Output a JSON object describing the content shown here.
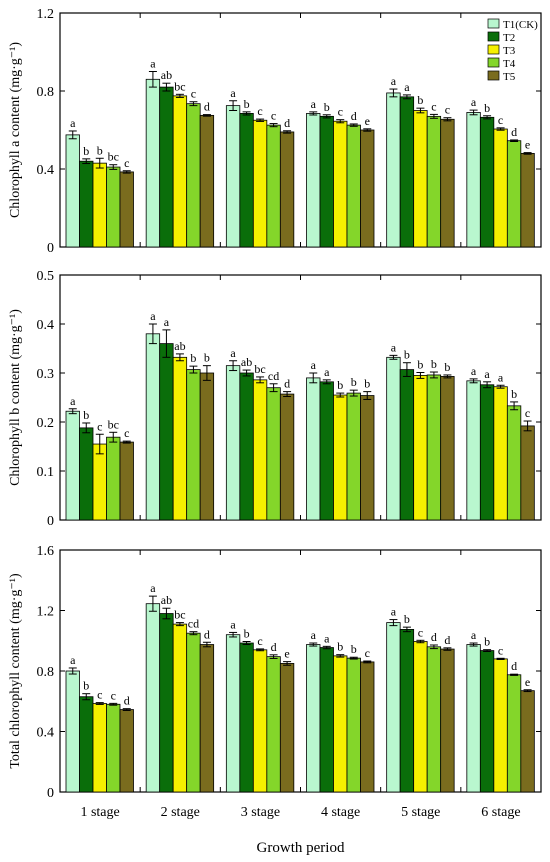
{
  "chart_data": [
    {
      "type": "bar",
      "ylabel": "Chlorophyll a content  (mg·g⁻¹)",
      "ylim": [
        0,
        1.2
      ],
      "yticks": [
        0,
        0.4,
        0.8,
        1.2
      ],
      "ytick_labels": [
        "0",
        "0.4",
        "0.8",
        "1.2"
      ],
      "grid": false,
      "legend": "top-right",
      "series": [
        {
          "name": "T1(CK)",
          "values": [
            0.575,
            0.86,
            0.725,
            0.685,
            0.79,
            0.69
          ],
          "errors": [
            0.02,
            0.04,
            0.025,
            0.008,
            0.02,
            0.012
          ],
          "letters": [
            "a",
            "a",
            "a",
            "a",
            "a",
            "a"
          ]
        },
        {
          "name": "T2",
          "values": [
            0.44,
            0.82,
            0.685,
            0.67,
            0.77,
            0.665
          ],
          "errors": [
            0.012,
            0.02,
            0.008,
            0.008,
            0.01,
            0.008
          ],
          "letters": [
            "b",
            "ab",
            "b",
            "b",
            "a",
            "b"
          ]
        },
        {
          "name": "T3",
          "values": [
            0.43,
            0.775,
            0.65,
            0.645,
            0.7,
            0.605
          ],
          "errors": [
            0.025,
            0.008,
            0.006,
            0.008,
            0.012,
            0.006
          ],
          "letters": [
            "b",
            "bc",
            "c",
            "c",
            "b",
            "c"
          ]
        },
        {
          "name": "T4",
          "values": [
            0.41,
            0.735,
            0.625,
            0.625,
            0.67,
            0.545
          ],
          "errors": [
            0.012,
            0.01,
            0.008,
            0.006,
            0.01,
            0.004
          ],
          "letters": [
            "bc",
            "c",
            "c",
            "d",
            "c",
            "d"
          ]
        },
        {
          "name": "T5",
          "values": [
            0.385,
            0.675,
            0.59,
            0.6,
            0.655,
            0.48
          ],
          "errors": [
            0.006,
            0.004,
            0.006,
            0.006,
            0.008,
            0.004
          ],
          "letters": [
            "c",
            "d",
            "d",
            "e",
            "c",
            "e"
          ]
        }
      ]
    },
    {
      "type": "bar",
      "ylabel": "Chlorophyll b content  (mg·g⁻¹)",
      "ylim": [
        0,
        0.5
      ],
      "yticks": [
        0,
        0.1,
        0.2,
        0.3,
        0.4,
        0.5
      ],
      "ytick_labels": [
        "0",
        "0.1",
        "0.2",
        "0.3",
        "0.4",
        "0.5"
      ],
      "grid": false,
      "series": [
        {
          "name": "T1(CK)",
          "values": [
            0.222,
            0.38,
            0.315,
            0.29,
            0.332,
            0.284
          ],
          "errors": [
            0.005,
            0.02,
            0.01,
            0.01,
            0.004,
            0.004
          ],
          "letters": [
            "a",
            "a",
            "a",
            "a",
            "a",
            "a"
          ]
        },
        {
          "name": "T2",
          "values": [
            0.188,
            0.36,
            0.3,
            0.282,
            0.307,
            0.276
          ],
          "errors": [
            0.01,
            0.028,
            0.006,
            0.004,
            0.014,
            0.006
          ],
          "letters": [
            "b",
            "a",
            "ab",
            "a",
            "b",
            "a"
          ]
        },
        {
          "name": "T3",
          "values": [
            0.155,
            0.332,
            0.286,
            0.255,
            0.295,
            0.272
          ],
          "errors": [
            0.02,
            0.007,
            0.006,
            0.004,
            0.006,
            0.003
          ],
          "letters": [
            "c",
            "ab",
            "bc",
            "b",
            "b",
            "a"
          ]
        },
        {
          "name": "T4",
          "values": [
            0.169,
            0.307,
            0.27,
            0.259,
            0.296,
            0.233
          ],
          "errors": [
            0.01,
            0.007,
            0.008,
            0.006,
            0.006,
            0.008
          ],
          "letters": [
            "bc",
            "b",
            "cd",
            "b",
            "b",
            "b"
          ]
        },
        {
          "name": "T5",
          "values": [
            0.159,
            0.3,
            0.257,
            0.254,
            0.293,
            0.192
          ],
          "errors": [
            0.002,
            0.015,
            0.005,
            0.008,
            0.003,
            0.01
          ],
          "letters": [
            "c",
            "b",
            "d",
            "b",
            "b",
            "c"
          ]
        }
      ]
    },
    {
      "type": "bar",
      "ylabel": "Total chlorophyll content  (mg·g⁻¹)",
      "xlabel": "Growth period",
      "categories": [
        "1 stage",
        "2 stage",
        "3 stage",
        "4 stage",
        "5 stage",
        "6 stage"
      ],
      "ylim": [
        0,
        1.6
      ],
      "yticks": [
        0,
        0.4,
        0.8,
        1.2,
        1.6
      ],
      "ytick_labels": [
        "0",
        "0.4",
        "0.8",
        "1.2",
        "1.6"
      ],
      "grid": false,
      "series": [
        {
          "name": "T1(CK)",
          "values": [
            0.8,
            1.245,
            1.04,
            0.975,
            1.12,
            0.975
          ],
          "errors": [
            0.02,
            0.05,
            0.015,
            0.01,
            0.02,
            0.01
          ],
          "letters": [
            "a",
            "a",
            "a",
            "a",
            "a",
            "a"
          ]
        },
        {
          "name": "T2",
          "values": [
            0.63,
            1.18,
            0.985,
            0.955,
            1.075,
            0.935
          ],
          "errors": [
            0.02,
            0.035,
            0.01,
            0.008,
            0.015,
            0.006
          ],
          "letters": [
            "b",
            "ab",
            "b",
            "a",
            "b",
            "b"
          ]
        },
        {
          "name": "T3",
          "values": [
            0.585,
            1.11,
            0.94,
            0.9,
            0.995,
            0.88
          ],
          "errors": [
            0.006,
            0.01,
            0.006,
            0.008,
            0.008,
            0.004
          ],
          "letters": [
            "c",
            "bc",
            "c",
            "b",
            "c",
            "c"
          ]
        },
        {
          "name": "T4",
          "values": [
            0.58,
            1.05,
            0.895,
            0.885,
            0.96,
            0.775
          ],
          "errors": [
            0.006,
            0.01,
            0.012,
            0.006,
            0.012,
            0.004
          ],
          "letters": [
            "c",
            "cd",
            "d",
            "b",
            "d",
            "d"
          ]
        },
        {
          "name": "T5",
          "values": [
            0.545,
            0.975,
            0.85,
            0.86,
            0.945,
            0.67
          ],
          "errors": [
            0.006,
            0.015,
            0.012,
            0.006,
            0.008,
            0.006
          ],
          "letters": [
            "d",
            "d",
            "e",
            "c",
            "d",
            "e"
          ]
        }
      ]
    }
  ],
  "colors": {
    "T1(CK)": "#b9f7cf",
    "T2": "#0a6e0a",
    "T3": "#f5f000",
    "T4": "#84d62a",
    "T5": "#7a6c1e"
  }
}
